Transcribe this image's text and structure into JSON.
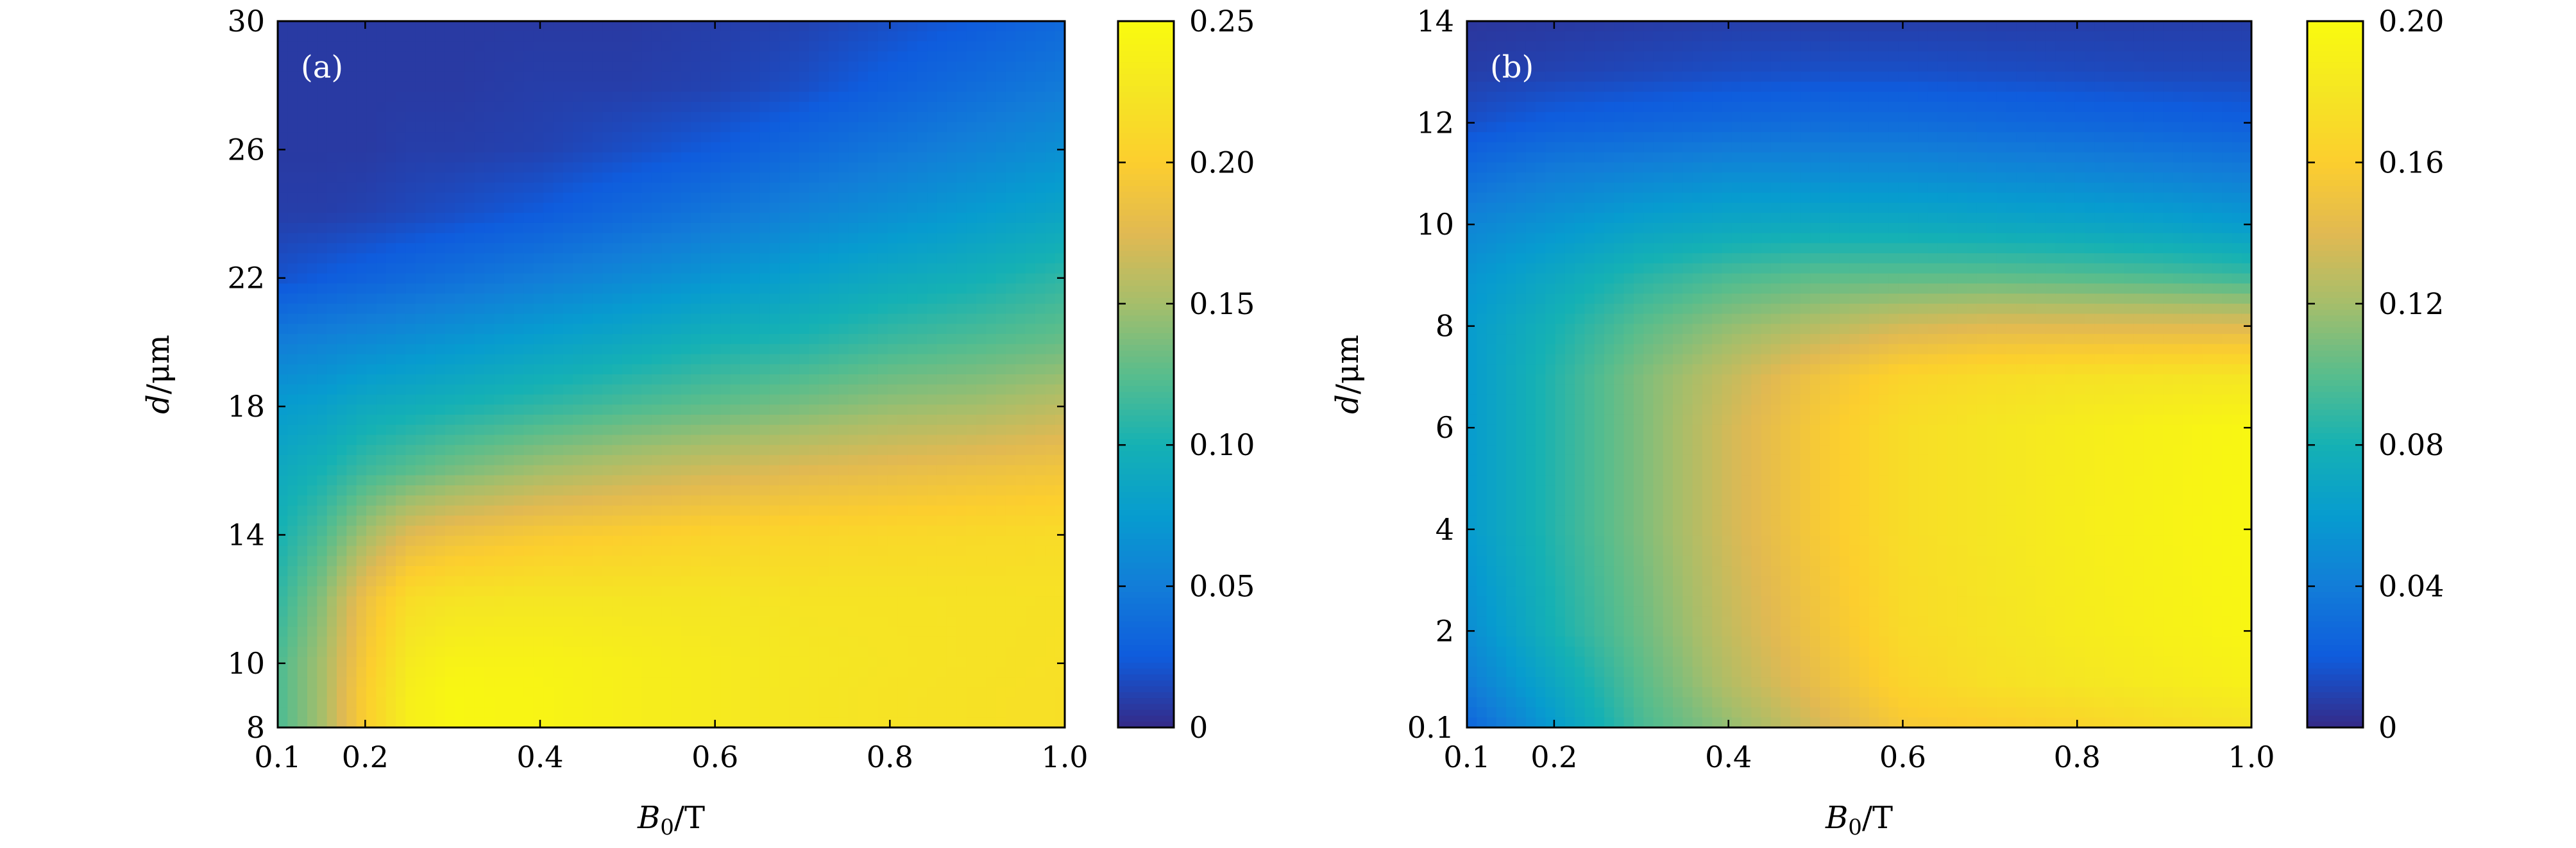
{
  "chart_data": [
    {
      "type": "heatmap",
      "panel_label": "(a)",
      "xlabel": {
        "italic": "B",
        "sub": "0",
        "rest": "/T"
      },
      "ylabel": {
        "italic": "d",
        "rest": "/μm"
      },
      "xlim": [
        0.1,
        1.0
      ],
      "ylim": [
        8,
        30
      ],
      "xticks": [
        0.1,
        0.2,
        0.4,
        0.6,
        0.8,
        1.0
      ],
      "xtick_labels": [
        "0.1",
        "0.2",
        "0.4",
        "0.6",
        "0.8",
        "1.0"
      ],
      "yticks": [
        8,
        10,
        14,
        18,
        22,
        26,
        30
      ],
      "ytick_labels": [
        "8",
        "10",
        "14",
        "18",
        "22",
        "26",
        "30"
      ],
      "colorbar": {
        "range": [
          0,
          0.25
        ],
        "ticks": [
          0,
          0.05,
          0.1,
          0.15,
          0.2,
          0.25
        ],
        "tick_labels": [
          "0",
          "0.05",
          "0.10",
          "0.15",
          "0.20",
          "0.25"
        ]
      },
      "grid_x": [
        0.1,
        0.15,
        0.2,
        0.25,
        0.3,
        0.4,
        0.5,
        0.6,
        0.7,
        0.8,
        0.9,
        1.0
      ],
      "grid_y": [
        8,
        9,
        10,
        12,
        14,
        16,
        18,
        20,
        22,
        24,
        26,
        28,
        30
      ],
      "values": [
        [
          0.12,
          0.15,
          0.2,
          0.235,
          0.245,
          0.242,
          0.235,
          0.23,
          0.225,
          0.222,
          0.22,
          0.218
        ],
        [
          0.12,
          0.15,
          0.2,
          0.235,
          0.245,
          0.242,
          0.235,
          0.23,
          0.225,
          0.222,
          0.22,
          0.218
        ],
        [
          0.12,
          0.15,
          0.195,
          0.23,
          0.24,
          0.24,
          0.235,
          0.23,
          0.226,
          0.223,
          0.221,
          0.219
        ],
        [
          0.11,
          0.14,
          0.185,
          0.215,
          0.222,
          0.225,
          0.224,
          0.224,
          0.222,
          0.222,
          0.221,
          0.22
        ],
        [
          0.1,
          0.12,
          0.15,
          0.175,
          0.185,
          0.195,
          0.2,
          0.205,
          0.208,
          0.21,
          0.212,
          0.214
        ],
        [
          0.09,
          0.1,
          0.115,
          0.125,
          0.135,
          0.15,
          0.16,
          0.168,
          0.175,
          0.18,
          0.185,
          0.19
        ],
        [
          0.075,
          0.08,
          0.09,
          0.095,
          0.1,
          0.11,
          0.12,
          0.128,
          0.136,
          0.145,
          0.15,
          0.16
        ],
        [
          0.05,
          0.055,
          0.06,
          0.065,
          0.07,
          0.08,
          0.09,
          0.1,
          0.105,
          0.115,
          0.122,
          0.13
        ],
        [
          0.02,
          0.025,
          0.03,
          0.035,
          0.04,
          0.05,
          0.06,
          0.07,
          0.08,
          0.09,
          0.098,
          0.11
        ],
        [
          0.01,
          0.01,
          0.012,
          0.015,
          0.018,
          0.025,
          0.035,
          0.045,
          0.055,
          0.065,
          0.075,
          0.085
        ],
        [
          0.008,
          0.008,
          0.008,
          0.01,
          0.01,
          0.012,
          0.018,
          0.025,
          0.035,
          0.045,
          0.055,
          0.065
        ],
        [
          0.008,
          0.008,
          0.008,
          0.008,
          0.008,
          0.01,
          0.01,
          0.012,
          0.018,
          0.028,
          0.038,
          0.048
        ],
        [
          0.008,
          0.008,
          0.008,
          0.008,
          0.008,
          0.008,
          0.008,
          0.01,
          0.012,
          0.018,
          0.025,
          0.035
        ]
      ]
    },
    {
      "type": "heatmap",
      "panel_label": "(b)",
      "xlabel": {
        "italic": "B",
        "sub": "0",
        "rest": "/T"
      },
      "ylabel": {
        "italic": "d",
        "rest": "/μm"
      },
      "xlim": [
        0.1,
        1.0
      ],
      "ylim": [
        0.1,
        14
      ],
      "xticks": [
        0.1,
        0.2,
        0.4,
        0.6,
        0.8,
        1.0
      ],
      "xtick_labels": [
        "0.1",
        "0.2",
        "0.4",
        "0.6",
        "0.8",
        "1.0"
      ],
      "yticks": [
        0.1,
        2,
        4,
        6,
        8,
        10,
        12,
        14
      ],
      "ytick_labels": [
        "0.1",
        "2",
        "4",
        "6",
        "8",
        "10",
        "12",
        "14"
      ],
      "colorbar": {
        "range": [
          0,
          0.2
        ],
        "ticks": [
          0,
          0.04,
          0.08,
          0.12,
          0.16,
          0.2
        ],
        "tick_labels": [
          "0",
          "0.04",
          "0.08",
          "0.12",
          "0.16",
          "0.20"
        ]
      },
      "grid_x": [
        0.1,
        0.2,
        0.3,
        0.4,
        0.5,
        0.6,
        0.7,
        0.8,
        0.9,
        1.0
      ],
      "grid_y": [
        0.1,
        1,
        2,
        4,
        6,
        7,
        8,
        9,
        10,
        11,
        12,
        13,
        14
      ],
      "values": [
        [
          0.025,
          0.06,
          0.095,
          0.115,
          0.135,
          0.155,
          0.16,
          0.165,
          0.172,
          0.178
        ],
        [
          0.04,
          0.07,
          0.1,
          0.125,
          0.145,
          0.165,
          0.175,
          0.18,
          0.185,
          0.19
        ],
        [
          0.05,
          0.08,
          0.105,
          0.13,
          0.15,
          0.17,
          0.178,
          0.185,
          0.19,
          0.195
        ],
        [
          0.06,
          0.085,
          0.11,
          0.135,
          0.155,
          0.172,
          0.18,
          0.187,
          0.192,
          0.197
        ],
        [
          0.06,
          0.085,
          0.11,
          0.135,
          0.155,
          0.172,
          0.18,
          0.186,
          0.191,
          0.196
        ],
        [
          0.06,
          0.085,
          0.11,
          0.13,
          0.15,
          0.165,
          0.172,
          0.176,
          0.178,
          0.18
        ],
        [
          0.06,
          0.08,
          0.1,
          0.115,
          0.125,
          0.135,
          0.14,
          0.14,
          0.14,
          0.14
        ],
        [
          0.055,
          0.07,
          0.085,
          0.095,
          0.1,
          0.1,
          0.1,
          0.098,
          0.095,
          0.09
        ],
        [
          0.045,
          0.055,
          0.065,
          0.07,
          0.072,
          0.072,
          0.07,
          0.068,
          0.065,
          0.06
        ],
        [
          0.03,
          0.04,
          0.045,
          0.05,
          0.05,
          0.05,
          0.048,
          0.046,
          0.043,
          0.04
        ],
        [
          0.015,
          0.022,
          0.025,
          0.028,
          0.03,
          0.03,
          0.028,
          0.026,
          0.024,
          0.022
        ],
        [
          0.008,
          0.01,
          0.012,
          0.014,
          0.015,
          0.015,
          0.014,
          0.013,
          0.012,
          0.012
        ],
        [
          0.005,
          0.006,
          0.007,
          0.008,
          0.008,
          0.008,
          0.008,
          0.008,
          0.008,
          0.008
        ]
      ]
    }
  ]
}
